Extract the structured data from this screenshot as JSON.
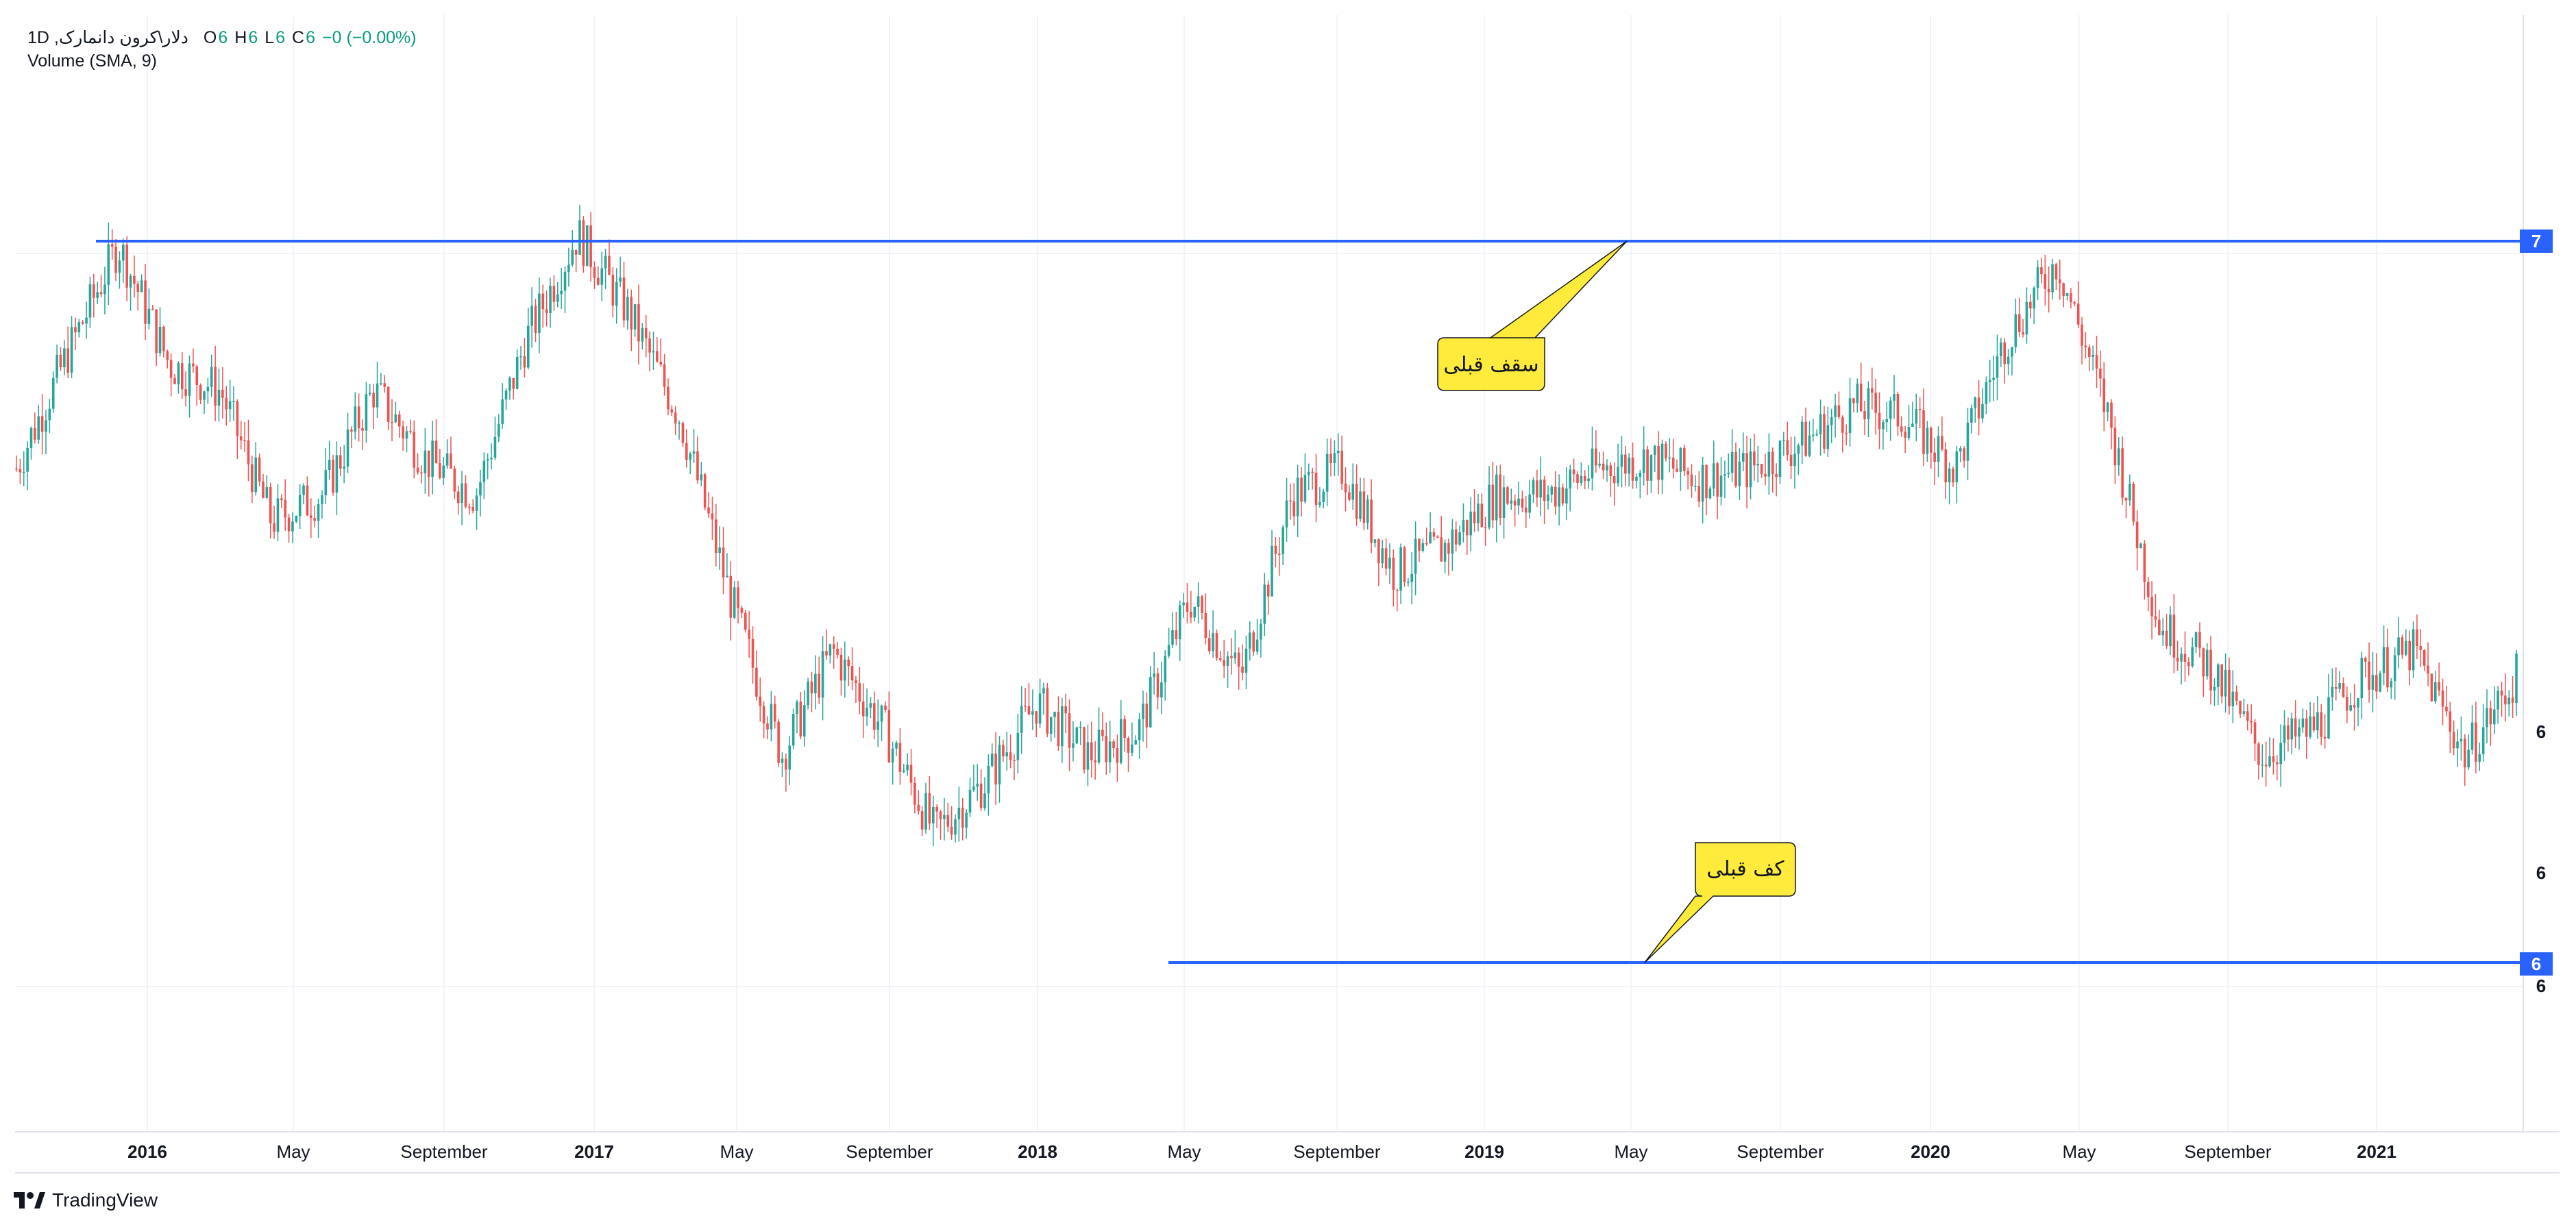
{
  "legend": {
    "symbol_title": "دلار\\کرون دانمارک, 1D",
    "o_label": "O",
    "o_value": "6",
    "h_label": "H",
    "h_value": "6",
    "l_label": "L",
    "l_value": "6",
    "c_label": "C",
    "c_value": "6",
    "change": "−0 (−0.00%)",
    "indicator": "Volume (SMA, 9)"
  },
  "chart_data": {
    "type": "line",
    "title": "",
    "x_axis_ticks": [
      "2016",
      "May",
      "September",
      "2017",
      "May",
      "September",
      "2018",
      "May",
      "September",
      "2019",
      "May",
      "September",
      "2020",
      "May",
      "September",
      "2021"
    ],
    "year_ticks": [
      "2016",
      "2017",
      "2018",
      "2019",
      "2020",
      "2021"
    ],
    "price_scale_labels": [
      "6",
      "6",
      "6"
    ],
    "price_tags": [
      {
        "label": "7",
        "kind": "resistance"
      },
      {
        "label": "6",
        "kind": "support"
      }
    ],
    "series": [
      {
        "values": [
          6.6,
          6.82,
          7.03,
          6.8,
          6.75,
          6.5,
          6.55,
          6.75,
          6.62,
          6.55,
          6.85,
          7.05,
          6.9,
          6.7,
          6.35,
          6.05,
          6.25,
          6.1,
          5.9,
          6.0,
          6.15,
          6.05,
          6.1,
          6.35,
          6.2,
          6.55,
          6.6,
          6.4,
          6.45,
          6.55,
          6.55,
          6.6,
          6.62,
          6.58,
          6.6,
          6.65,
          6.72,
          6.7,
          6.6,
          6.85,
          7.0,
          6.7,
          6.3,
          6.22,
          6.05,
          6.1,
          6.2,
          6.25,
          6.05,
          6.2
        ]
      }
    ],
    "candle_colors": {
      "up": "#26a69a",
      "down": "#ef5350"
    },
    "levels": {
      "resistance_color": "#2962ff",
      "support_color": "#2962ff"
    },
    "annotations": [
      {
        "text": "سقف قبلی",
        "target": "resistance"
      },
      {
        "text": "کف قبلی",
        "target": "support"
      }
    ],
    "grid": true,
    "legend_position": "top-left"
  },
  "brand": {
    "name": "TradingView"
  }
}
